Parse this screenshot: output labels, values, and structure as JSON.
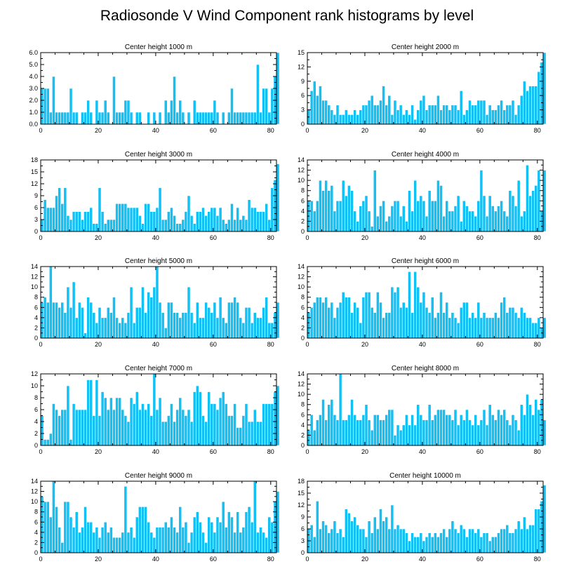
{
  "title": "Radiosonde V Wind Component rank histograms by level",
  "colors": {
    "bar": "#13c0f3",
    "axis": "#000000",
    "background": "#ffffff"
  },
  "chart_data": [
    {
      "type": "bar",
      "title": "Center height 1000 m",
      "xlim": [
        0,
        82
      ],
      "ylim": [
        0,
        6
      ],
      "xticks": [
        "0",
        "20",
        "40",
        "60",
        "80"
      ],
      "yticks": [
        "0.0",
        "1.0",
        "2.0",
        "3.0",
        "4.0",
        "5.0",
        "6.0"
      ],
      "ytick_values": [
        0,
        1,
        2,
        3,
        4,
        5,
        6
      ],
      "values": [
        3,
        3,
        3,
        1,
        4,
        1,
        1,
        1,
        1,
        1,
        3,
        1,
        1,
        0,
        1,
        1,
        2,
        1,
        0,
        2,
        1,
        1,
        2,
        1,
        0,
        4,
        1,
        1,
        1,
        2,
        2,
        1,
        0,
        1,
        1,
        0,
        0,
        1,
        0,
        1,
        0,
        1,
        0,
        2,
        1,
        2,
        4,
        1,
        2,
        1,
        0,
        1,
        0,
        2,
        1,
        1,
        1,
        1,
        1,
        1,
        2,
        1,
        0,
        1,
        0,
        1,
        3,
        1,
        1,
        1,
        1,
        1,
        1,
        1,
        1,
        5,
        1,
        3,
        3,
        1,
        3,
        4,
        6
      ]
    },
    {
      "type": "bar",
      "title": "Center height 2000 m",
      "xlim": [
        0,
        82
      ],
      "ylim": [
        0,
        15
      ],
      "xticks": [
        "0",
        "20",
        "40",
        "60",
        "80"
      ],
      "yticks": [
        "0",
        "3",
        "6",
        "9",
        "12",
        "15"
      ],
      "ytick_values": [
        0,
        3,
        6,
        9,
        12,
        15
      ],
      "values": [
        3,
        7,
        9,
        6,
        8,
        5,
        5,
        4,
        3,
        2,
        4,
        2,
        2,
        3,
        2,
        2,
        3,
        2,
        3,
        4,
        4,
        5,
        6,
        4,
        4,
        5,
        8,
        4,
        6,
        2,
        5,
        3,
        4,
        2,
        3,
        2,
        4,
        1,
        3,
        5,
        6,
        3,
        4,
        4,
        4,
        6,
        3,
        4,
        4,
        3,
        4,
        4,
        3,
        7,
        2,
        3,
        5,
        4,
        4,
        5,
        5,
        5,
        2,
        4,
        3,
        3,
        4,
        5,
        3,
        4,
        4,
        5,
        2,
        4,
        6,
        9,
        7,
        8,
        8,
        8,
        11,
        13,
        15
      ]
    },
    {
      "type": "bar",
      "title": "Center height 3000 m",
      "xlim": [
        0,
        82
      ],
      "ylim": [
        0,
        18
      ],
      "xticks": [
        "0",
        "20",
        "40",
        "60",
        "80"
      ],
      "yticks": [
        "0",
        "3",
        "6",
        "9",
        "12",
        "15",
        "18"
      ],
      "ytick_values": [
        0,
        3,
        6,
        9,
        12,
        15,
        18
      ],
      "values": [
        3,
        8,
        6,
        6,
        6,
        9,
        11,
        7,
        11,
        4,
        3,
        5,
        5,
        5,
        3,
        5,
        5,
        6,
        2,
        2,
        11,
        5,
        2,
        3,
        3,
        3,
        7,
        7,
        7,
        7,
        6,
        6,
        6,
        6,
        4,
        2,
        7,
        7,
        5,
        5,
        6,
        11,
        3,
        3,
        5,
        6,
        4,
        2,
        2,
        3,
        5,
        9,
        4,
        2,
        5,
        5,
        6,
        4,
        5,
        6,
        6,
        4,
        6,
        3,
        2,
        3,
        7,
        3,
        6,
        3,
        4,
        3,
        8,
        6,
        6,
        5,
        5,
        5,
        7,
        3,
        11,
        13,
        17
      ]
    },
    {
      "type": "bar",
      "title": "Center height 4000 m",
      "xlim": [
        0,
        82
      ],
      "ylim": [
        0,
        14
      ],
      "xticks": [
        "0",
        "20",
        "40",
        "60",
        "80"
      ],
      "yticks": [
        "0",
        "2",
        "4",
        "6",
        "8",
        "10",
        "12",
        "14"
      ],
      "ytick_values": [
        0,
        2,
        4,
        6,
        8,
        10,
        12,
        14
      ],
      "values": [
        6,
        6,
        4,
        6,
        10,
        8,
        10,
        8,
        9,
        4,
        6,
        6,
        10,
        7,
        9,
        8,
        4,
        2,
        5,
        6,
        7,
        4,
        1,
        12,
        3,
        5,
        6,
        2,
        3,
        5,
        6,
        6,
        3,
        5,
        2,
        8,
        4,
        10,
        6,
        7,
        6,
        3,
        8,
        6,
        6,
        10,
        9,
        3,
        6,
        4,
        4,
        5,
        7,
        2,
        6,
        5,
        4,
        4,
        3,
        6,
        12,
        7,
        3,
        7,
        5,
        4,
        5,
        6,
        4,
        3,
        8,
        7,
        5,
        10,
        3,
        4,
        13,
        7,
        8,
        9,
        12,
        4,
        12
      ]
    },
    {
      "type": "bar",
      "title": "Center height 5000 m",
      "xlim": [
        0,
        82
      ],
      "ylim": [
        0,
        14
      ],
      "xticks": [
        "0",
        "20",
        "40",
        "60",
        "80"
      ],
      "yticks": [
        "0",
        "2",
        "4",
        "6",
        "8",
        "10",
        "12",
        "14"
      ],
      "ytick_values": [
        0,
        2,
        4,
        6,
        8,
        10,
        12,
        14
      ],
      "values": [
        7,
        8,
        7,
        14,
        7,
        7,
        6,
        7,
        5,
        10,
        6,
        11,
        4,
        7,
        6,
        1,
        8,
        7,
        5,
        3,
        6,
        4,
        4,
        6,
        5,
        8,
        4,
        3,
        4,
        3,
        5,
        10,
        3,
        6,
        6,
        10,
        5,
        9,
        8,
        10,
        14,
        7,
        5,
        2,
        7,
        7,
        5,
        5,
        4,
        5,
        5,
        10,
        5,
        3,
        7,
        4,
        4,
        7,
        6,
        5,
        7,
        4,
        8,
        4,
        3,
        7,
        7,
        8,
        7,
        4,
        3,
        6,
        6,
        3,
        5,
        4,
        4,
        6,
        8,
        3,
        3,
        5,
        7
      ]
    },
    {
      "type": "bar",
      "title": "Center height 6000 m",
      "xlim": [
        0,
        82
      ],
      "ylim": [
        0,
        14
      ],
      "xticks": [
        "0",
        "20",
        "40",
        "60",
        "80"
      ],
      "yticks": [
        "0",
        "2",
        "4",
        "6",
        "8",
        "10",
        "12",
        "14"
      ],
      "ytick_values": [
        0,
        2,
        4,
        6,
        8,
        10,
        12,
        14
      ],
      "values": [
        5,
        6,
        7,
        8,
        8,
        7,
        8,
        6,
        7,
        4,
        6,
        7,
        9,
        8,
        8,
        5,
        7,
        6,
        3,
        8,
        9,
        9,
        6,
        5,
        9,
        7,
        4,
        5,
        5,
        10,
        9,
        10,
        6,
        7,
        6,
        13,
        5,
        13,
        10,
        7,
        9,
        6,
        5,
        8,
        4,
        5,
        9,
        5,
        7,
        4,
        5,
        4,
        3,
        6,
        7,
        7,
        4,
        5,
        4,
        7,
        4,
        5,
        4,
        4,
        4,
        5,
        4,
        7,
        8,
        5,
        6,
        6,
        5,
        4,
        6,
        5,
        4,
        4,
        3,
        3,
        4,
        2,
        4
      ]
    },
    {
      "type": "bar",
      "title": "Center height 7000 m",
      "xlim": [
        0,
        82
      ],
      "ylim": [
        0,
        12
      ],
      "xticks": [
        "0",
        "20",
        "40",
        "60",
        "80"
      ],
      "yticks": [
        "0",
        "2",
        "4",
        "6",
        "8",
        "10",
        "12"
      ],
      "ytick_values": [
        0,
        2,
        4,
        6,
        8,
        10,
        12
      ],
      "values": [
        5,
        1,
        1,
        2,
        7,
        6,
        5,
        6,
        6,
        10,
        1,
        7,
        6,
        6,
        6,
        6,
        11,
        11,
        5,
        11,
        5,
        9,
        8,
        6,
        8,
        6,
        8,
        8,
        6,
        5,
        4,
        8,
        7,
        9,
        6,
        7,
        6,
        7,
        5,
        12,
        6,
        8,
        4,
        4,
        5,
        7,
        4,
        6,
        8,
        6,
        5,
        6,
        4,
        9,
        10,
        9,
        5,
        4,
        9,
        7,
        7,
        6,
        8,
        9,
        7,
        5,
        5,
        7,
        3,
        3,
        5,
        7,
        4,
        4,
        6,
        4,
        4,
        7,
        7,
        7,
        7,
        9,
        10
      ]
    },
    {
      "type": "bar",
      "title": "Center height 8000 m",
      "xlim": [
        0,
        82
      ],
      "ylim": [
        0,
        14
      ],
      "xticks": [
        "0",
        "20",
        "40",
        "60",
        "80"
      ],
      "yticks": [
        "0",
        "2",
        "4",
        "6",
        "8",
        "10",
        "12",
        "14"
      ],
      "ytick_values": [
        0,
        2,
        4,
        6,
        8,
        10,
        12,
        14
      ],
      "values": [
        3,
        6,
        3,
        5,
        6,
        9,
        5,
        8,
        9,
        6,
        5,
        14,
        5,
        5,
        6,
        9,
        6,
        5,
        5,
        6,
        8,
        5,
        3,
        6,
        6,
        5,
        5,
        6,
        7,
        7,
        2,
        4,
        3,
        4,
        6,
        4,
        6,
        4,
        8,
        6,
        5,
        5,
        8,
        5,
        6,
        7,
        7,
        7,
        6,
        6,
        5,
        7,
        4,
        6,
        5,
        7,
        5,
        4,
        6,
        4,
        5,
        7,
        4,
        8,
        6,
        5,
        7,
        6,
        7,
        5,
        4,
        6,
        5,
        3,
        8,
        6,
        10,
        8,
        6,
        9,
        7,
        9,
        5
      ]
    },
    {
      "type": "bar",
      "title": "Center height 9000 m",
      "xlim": [
        0,
        82
      ],
      "ylim": [
        0,
        14
      ],
      "xticks": [
        "0",
        "20",
        "40",
        "60",
        "80"
      ],
      "yticks": [
        "0",
        "2",
        "4",
        "6",
        "8",
        "10",
        "12",
        "14"
      ],
      "ytick_values": [
        0,
        2,
        4,
        6,
        8,
        10,
        12,
        14
      ],
      "values": [
        11,
        10,
        10,
        7,
        14,
        9,
        5,
        2,
        10,
        10,
        7,
        5,
        8,
        4,
        5,
        9,
        6,
        6,
        4,
        5,
        3,
        5,
        6,
        4,
        5,
        3,
        3,
        3,
        4,
        13,
        4,
        5,
        3,
        7,
        9,
        9,
        9,
        6,
        4,
        3,
        5,
        5,
        5,
        6,
        5,
        7,
        5,
        4,
        9,
        5,
        6,
        2,
        4,
        7,
        8,
        6,
        4,
        2,
        7,
        6,
        4,
        7,
        6,
        10,
        5,
        8,
        7,
        4,
        8,
        4,
        5,
        8,
        9,
        6,
        14,
        4,
        5,
        4,
        3,
        7,
        6,
        10,
        12
      ]
    },
    {
      "type": "bar",
      "title": "Center height 10000 m",
      "xlim": [
        0,
        82
      ],
      "ylim": [
        0,
        18
      ],
      "xticks": [
        "0",
        "20",
        "40",
        "60",
        "80"
      ],
      "yticks": [
        "0",
        "3",
        "6",
        "9",
        "12",
        "15",
        "18"
      ],
      "ytick_values": [
        0,
        3,
        6,
        9,
        12,
        15,
        18
      ],
      "values": [
        6,
        7,
        4,
        13,
        6,
        8,
        7,
        5,
        6,
        8,
        5,
        6,
        4,
        11,
        10,
        8,
        9,
        7,
        6,
        6,
        4,
        8,
        5,
        9,
        6,
        11,
        8,
        9,
        6,
        12,
        6,
        7,
        6,
        6,
        5,
        3,
        5,
        4,
        4,
        5,
        3,
        4,
        5,
        4,
        5,
        4,
        5,
        6,
        4,
        6,
        8,
        6,
        5,
        7,
        6,
        4,
        6,
        6,
        5,
        6,
        4,
        5,
        5,
        3,
        4,
        4,
        5,
        6,
        6,
        7,
        5,
        5,
        6,
        8,
        6,
        9,
        6,
        7,
        7,
        11,
        11,
        13,
        17
      ]
    }
  ]
}
